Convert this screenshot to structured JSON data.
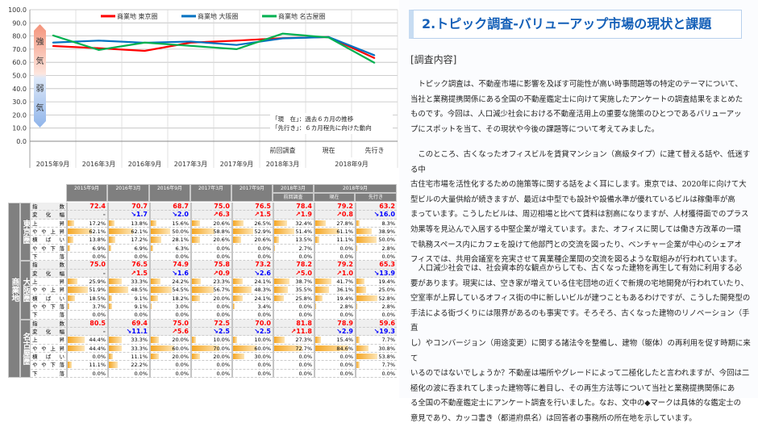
{
  "chart_data": {
    "type": "line",
    "categories": [
      "2015年9月",
      "2016年3月",
      "2016年9月",
      "2017年3月",
      "2017年9月",
      "2018年3月",
      "2018年9月 現在",
      "2018年9月 先行き"
    ],
    "x_labels_top": [
      "",
      "",
      "",
      "",
      "",
      "前回調査",
      "現在",
      "先行き"
    ],
    "x_labels_bottom": [
      "2015年9月",
      "2016年3月",
      "2016年9月",
      "2017年3月",
      "2017年9月",
      "2018年3月",
      "2018年9月"
    ],
    "ylim": [
      0,
      100
    ],
    "yticks": [
      "0.0",
      "10.0",
      "20.0",
      "30.0",
      "40.0",
      "50.0",
      "60.0",
      "70.0",
      "80.0",
      "90.0",
      "100.0"
    ],
    "grid": true,
    "legend_position": "top",
    "series": [
      {
        "name": "商業地 東京圏",
        "color": "#ff0000",
        "values": [
          72.4,
          70.7,
          68.7,
          75.0,
          76.5,
          78.4,
          79.2,
          63.2
        ]
      },
      {
        "name": "商業地 大阪圏",
        "color": "#0070c0",
        "values": [
          75.0,
          76.5,
          74.9,
          75.8,
          73.2,
          78.2,
          79.2,
          65.3
        ]
      },
      {
        "name": "商業地 名古屋圏",
        "color": "#00b050",
        "values": [
          80.5,
          69.4,
          75.0,
          72.5,
          70.0,
          81.8,
          78.9,
          59.6
        ]
      }
    ],
    "sentiment_arrow": [
      "強",
      "気",
      "弱",
      "気"
    ],
    "annotation": [
      "「現　在」：過去６カ月の推移",
      "「先行き」：６カ月程先に向けた動向"
    ]
  },
  "table": {
    "group_label": "商業地",
    "headers_top": [
      "2015年9月",
      "2016年3月",
      "2016年9月",
      "2017年3月",
      "2017年9月",
      "2018年3月",
      "2018年9月"
    ],
    "headers_sub": [
      "前回調査",
      "現在",
      "先行き"
    ],
    "row_labels": [
      "指数",
      "変化幅",
      "上昇",
      "やや上昇",
      "横ばい",
      "やや下落",
      "下落"
    ],
    "regions": [
      {
        "name": "東京圏",
        "index": [
          "72.4",
          "70.7",
          "68.7",
          "75.0",
          "76.5",
          "78.4",
          "79.2",
          "63.2"
        ],
        "change": [
          "-",
          "↘1.7",
          "↘2.0",
          "↗6.3",
          "↗1.5",
          "↗1.9",
          "↗0.8",
          "↘16.0"
        ],
        "pct": [
          [
            17.2,
            62.1,
            13.8,
            6.9,
            0.0
          ],
          [
            13.8,
            62.1,
            17.2,
            6.9,
            0.0
          ],
          [
            15.6,
            50.0,
            28.1,
            6.3,
            0.0
          ],
          [
            20.6,
            58.8,
            20.6,
            0.0,
            0.0
          ],
          [
            26.5,
            52.9,
            20.6,
            0.0,
            0.0
          ],
          [
            32.4,
            51.4,
            13.5,
            2.7,
            0.0
          ],
          [
            27.8,
            61.1,
            11.1,
            0.0,
            0.0
          ],
          [
            8.3,
            38.9,
            50.0,
            2.8,
            0.0
          ]
        ]
      },
      {
        "name": "大阪圏",
        "index": [
          "75.0",
          "76.5",
          "74.9",
          "75.8",
          "73.2",
          "78.2",
          "79.2",
          "65.3"
        ],
        "change": [
          "-",
          "↗1.5",
          "↘1.6",
          "↗0.9",
          "↘2.6",
          "↗5.0",
          "↗1.0",
          "↘13.9"
        ],
        "pct": [
          [
            25.9,
            51.9,
            18.5,
            3.7,
            0.0
          ],
          [
            33.3,
            48.5,
            9.1,
            9.1,
            0.0
          ],
          [
            24.2,
            54.5,
            18.2,
            3.0,
            0.0
          ],
          [
            23.3,
            56.7,
            20.0,
            0.0,
            0.0
          ],
          [
            24.1,
            48.3,
            24.1,
            3.4,
            0.0
          ],
          [
            38.7,
            35.5,
            25.8,
            0.0,
            0.0
          ],
          [
            41.7,
            36.1,
            19.4,
            2.8,
            0.0
          ],
          [
            19.4,
            25.0,
            52.8,
            2.8,
            0.0
          ]
        ]
      },
      {
        "name": "名古屋圏",
        "index": [
          "80.5",
          "69.4",
          "75.0",
          "72.5",
          "70.0",
          "81.8",
          "78.9",
          "59.6"
        ],
        "change": [
          "-",
          "↘11.1",
          "↗5.6",
          "↘2.5",
          "↘2.5",
          "↗11.8",
          "↘2.9",
          "↘19.3"
        ],
        "pct": [
          [
            44.4,
            44.4,
            0.0,
            11.1,
            0.0
          ],
          [
            33.3,
            33.3,
            11.1,
            22.2,
            0.0
          ],
          [
            20.0,
            60.0,
            20.0,
            0.0,
            0.0
          ],
          [
            10.0,
            70.0,
            20.0,
            0.0,
            0.0
          ],
          [
            10.0,
            60.0,
            30.0,
            0.0,
            0.0
          ],
          [
            27.3,
            72.7,
            0.0,
            0.0,
            0.0
          ],
          [
            15.4,
            84.6,
            0.0,
            0.0,
            0.0
          ],
          [
            7.7,
            30.8,
            53.8,
            7.7,
            0.0
          ]
        ]
      }
    ],
    "colors": {
      "up": "#ff0000",
      "down": "#0000ff",
      "bar": "#f5a623"
    }
  },
  "article": {
    "title": "2.トピック調査-バリューアップ市場の現状と課題",
    "section": "[調査内容]",
    "paragraphs": [
      [
        "　トピック調査は、不動産市場に影響を及ぼす可能性が高い時事問題等の特定のテーマについて、",
        "当社と業務提携関係にある全国の不動産鑑定士に向けて実施したアンケートの調査結果をまとめた",
        "ものです。今回は、人口減少社会における不動産活用上の重要な施策のひとつであるバリューアッ",
        "プにスポットを当て、その現状や今後の課題等について考えてみました。"
      ],
      [
        "　このところ、古くなったオフィスビルを賃貸マンション（高級タイプ）に建て替える話や、低迷する中",
        "古住宅市場を活性化するための施策等に関する話をよく耳にします。東京では、2020年に向けて大",
        "型ビルの大量供給が続きますが、最近は中型でも設計や設備水準が優れているビルは稼働率が高",
        "まっています。こうしたビルは、周辺相場と比べて賃料は割高になりますが、人材獲得面でのプラス",
        "効果等を見込んで入居する中堅企業が増えています。また、オフィスに関しては働き方改革の一環",
        "で執務スペース内にカフェを設けて他部門との交流を図ったり、ベンチャー企業が中心のシェアオ",
        "フィスでは、共用会議室を充実させて異業種企業間の交流を図るような取組みが行われています。"
      ],
      [
        "　人口減少社会では、社会資本的な観点からしても、古くなった建物を再生して有効に利用する必",
        "要があります。現実には、空き家が増えている住宅団地の近くで新規の宅地開発が行われていたり、",
        "空室率が上昇しているオフィス街の中に新しいビルが建つこともあるわけですが、こうした開発型の",
        "手法による街づくりには限界があるのも事実です。そろそろ、古くなった建物のリノベーション（手直",
        "し）やコンバージョン（用途変更）に関する諸法令を整備し、建物（躯体）の再利用を促す時期に来て",
        "いるのではないでしょうか？不動産は場所やグレードによって二極化したと言われますが、今回は二",
        "極化の波に呑まれてしまった建物等に着目し、その再生方法等について当社と業務提携関係にあ",
        "る全国の不動産鑑定士にアンケート調査を行いました。なお、文中の◆マークは具体的な鑑定士の",
        "意見であり、カッコ書き（都道府県名）は回答者の事務所の所在地を示しています。"
      ]
    ]
  }
}
